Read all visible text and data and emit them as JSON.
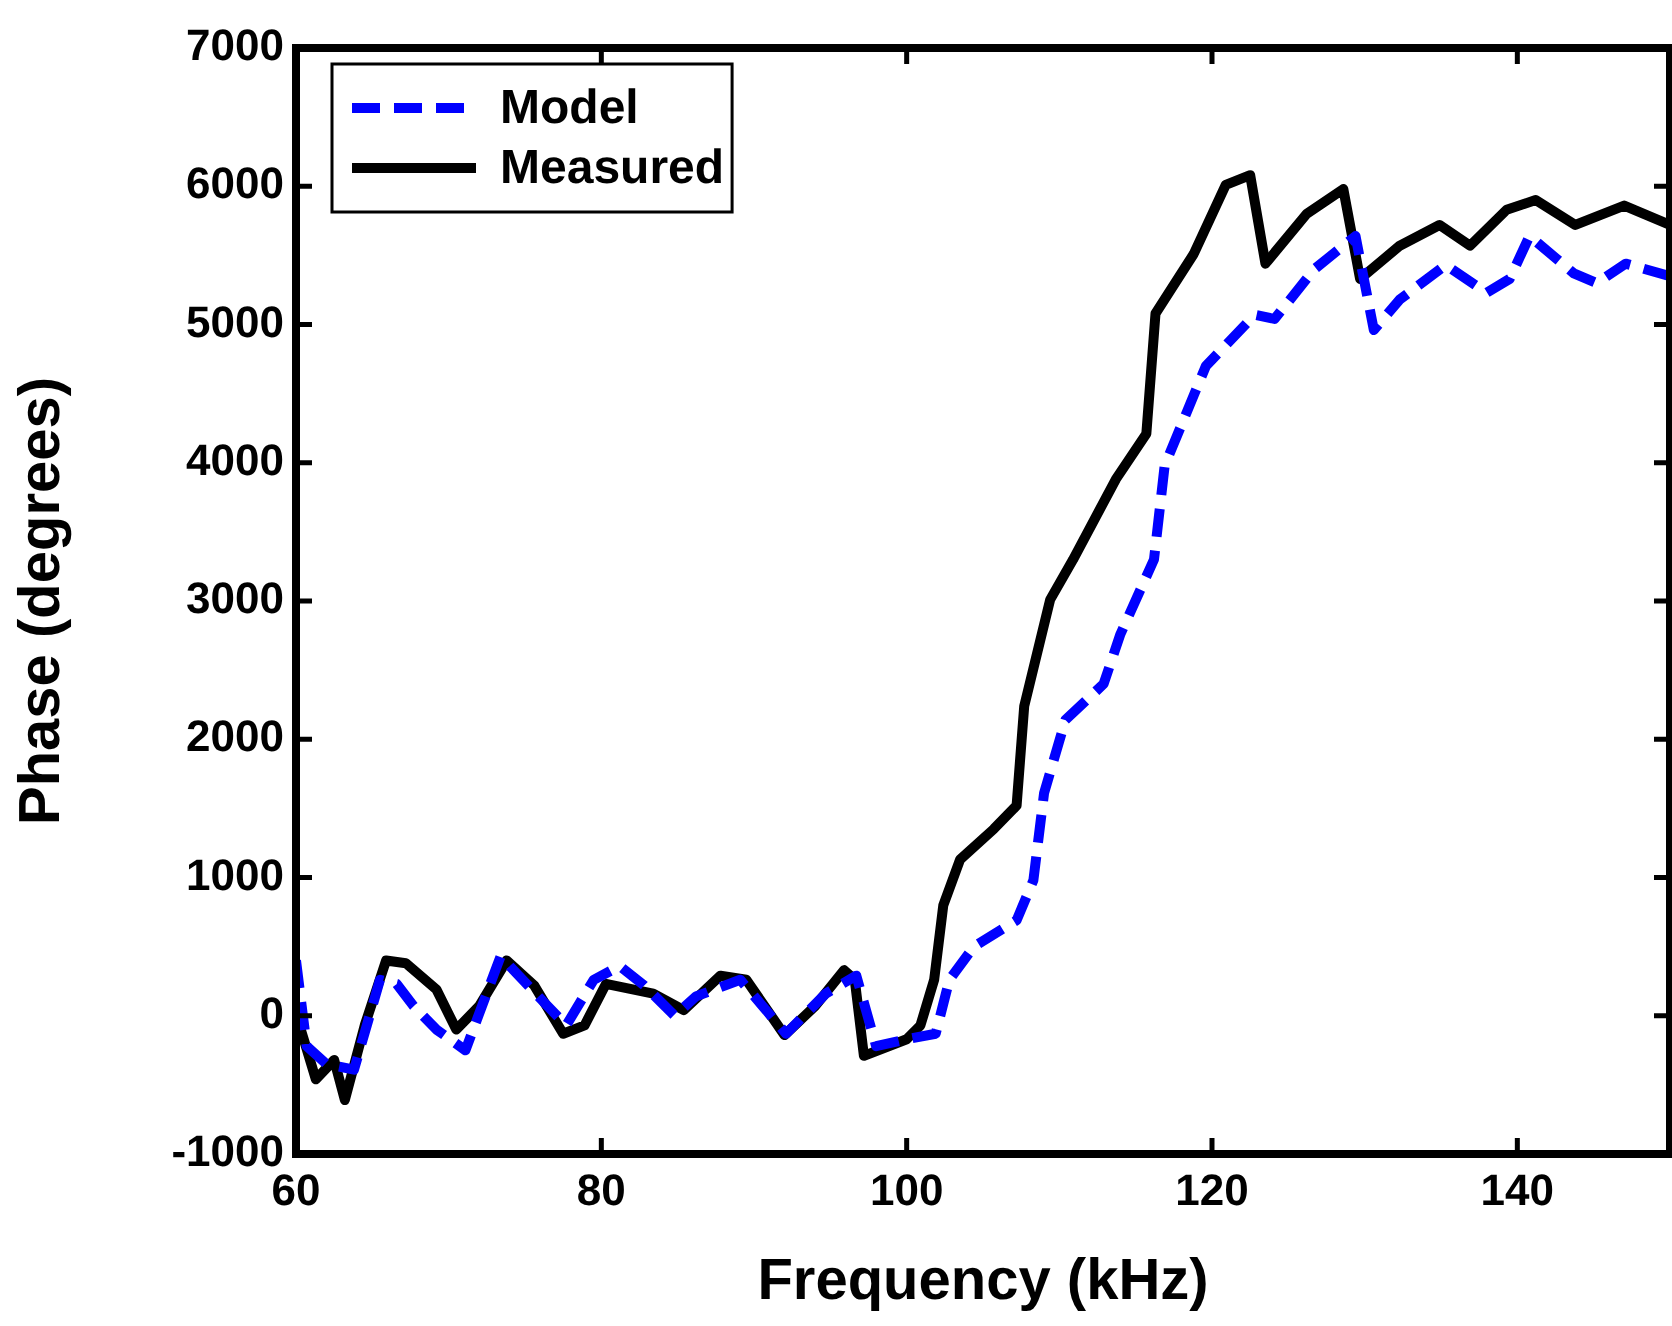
{
  "chart_data": {
    "type": "line",
    "xlabel": "Frequency (kHz)",
    "ylabel": "Phase (degrees)",
    "xlim": [
      60,
      150
    ],
    "xticks": [
      60,
      80,
      100,
      120,
      140
    ],
    "ylim": [
      -1000,
      7000
    ],
    "yticks": [
      -1000,
      0,
      1000,
      2000,
      3000,
      4000,
      5000,
      6000,
      7000
    ],
    "grid": false,
    "legend": "top left",
    "marker": "none",
    "series": [
      {
        "name": "Model",
        "color": "#0000ff",
        "line_style": "dashed",
        "x": [
          60,
          60.7,
          62,
          63.8,
          65.5,
          66.6,
          67.7,
          69.2,
          71.1,
          73.4,
          75.7,
          77.7,
          79.5,
          81.2,
          82.8,
          84.8,
          86.2,
          89.1,
          92.1,
          94.7,
          96.7,
          98,
          100,
          101.9,
          102.8,
          104.4,
          107.2,
          108.3,
          109,
          110.4,
          112.9,
          114,
          116.2,
          116.9,
          119.6,
          122.8,
          124.1,
          126.7,
          129.4,
          130.6,
          132.3,
          135.3,
          138,
          139.5,
          140.8,
          143.7,
          145.2,
          147.1,
          150
        ],
        "values": [
          400,
          -220,
          -350,
          -390,
          260,
          230,
          70,
          -100,
          -250,
          430,
          160,
          -70,
          260,
          360,
          220,
          0,
          140,
          260,
          -130,
          160,
          290,
          -220,
          -170,
          -130,
          260,
          500,
          690,
          980,
          1610,
          2140,
          2400,
          2760,
          3300,
          3980,
          4700,
          5070,
          5040,
          5400,
          5640,
          4960,
          5180,
          5430,
          5230,
          5330,
          5640,
          5370,
          5300,
          5440,
          5350
        ]
      },
      {
        "name": "Measured",
        "color": "#000000",
        "line_style": "solid",
        "x": [
          60,
          61.3,
          62.5,
          63.2,
          64.5,
          65.9,
          67.2,
          69.2,
          70.5,
          72,
          73.8,
          75.6,
          77.5,
          78.9,
          80.3,
          83.4,
          85.4,
          87.8,
          89.5,
          92,
          94,
          95.9,
          96.6,
          97.2,
          100,
          100.9,
          101.8,
          102.4,
          103.5,
          105.7,
          107.2,
          107.7,
          109.4,
          110.9,
          113.7,
          115.7,
          116.3,
          118.8,
          120.9,
          122.5,
          123.5,
          126.2,
          128.6,
          129.7,
          132.3,
          134.9,
          136.9,
          139.3,
          141.2,
          143.8,
          147,
          150
        ],
        "values": [
          15,
          -460,
          -320,
          -610,
          -70,
          400,
          380,
          190,
          -100,
          70,
          400,
          220,
          -130,
          -70,
          230,
          160,
          40,
          290,
          260,
          -140,
          70,
          330,
          260,
          -290,
          -170,
          -70,
          260,
          800,
          1130,
          1350,
          1520,
          2240,
          3010,
          3300,
          3880,
          4210,
          5080,
          5510,
          6010,
          6080,
          5440,
          5800,
          5980,
          5330,
          5570,
          5720,
          5570,
          5830,
          5900,
          5720,
          5860,
          5720
        ]
      }
    ]
  }
}
